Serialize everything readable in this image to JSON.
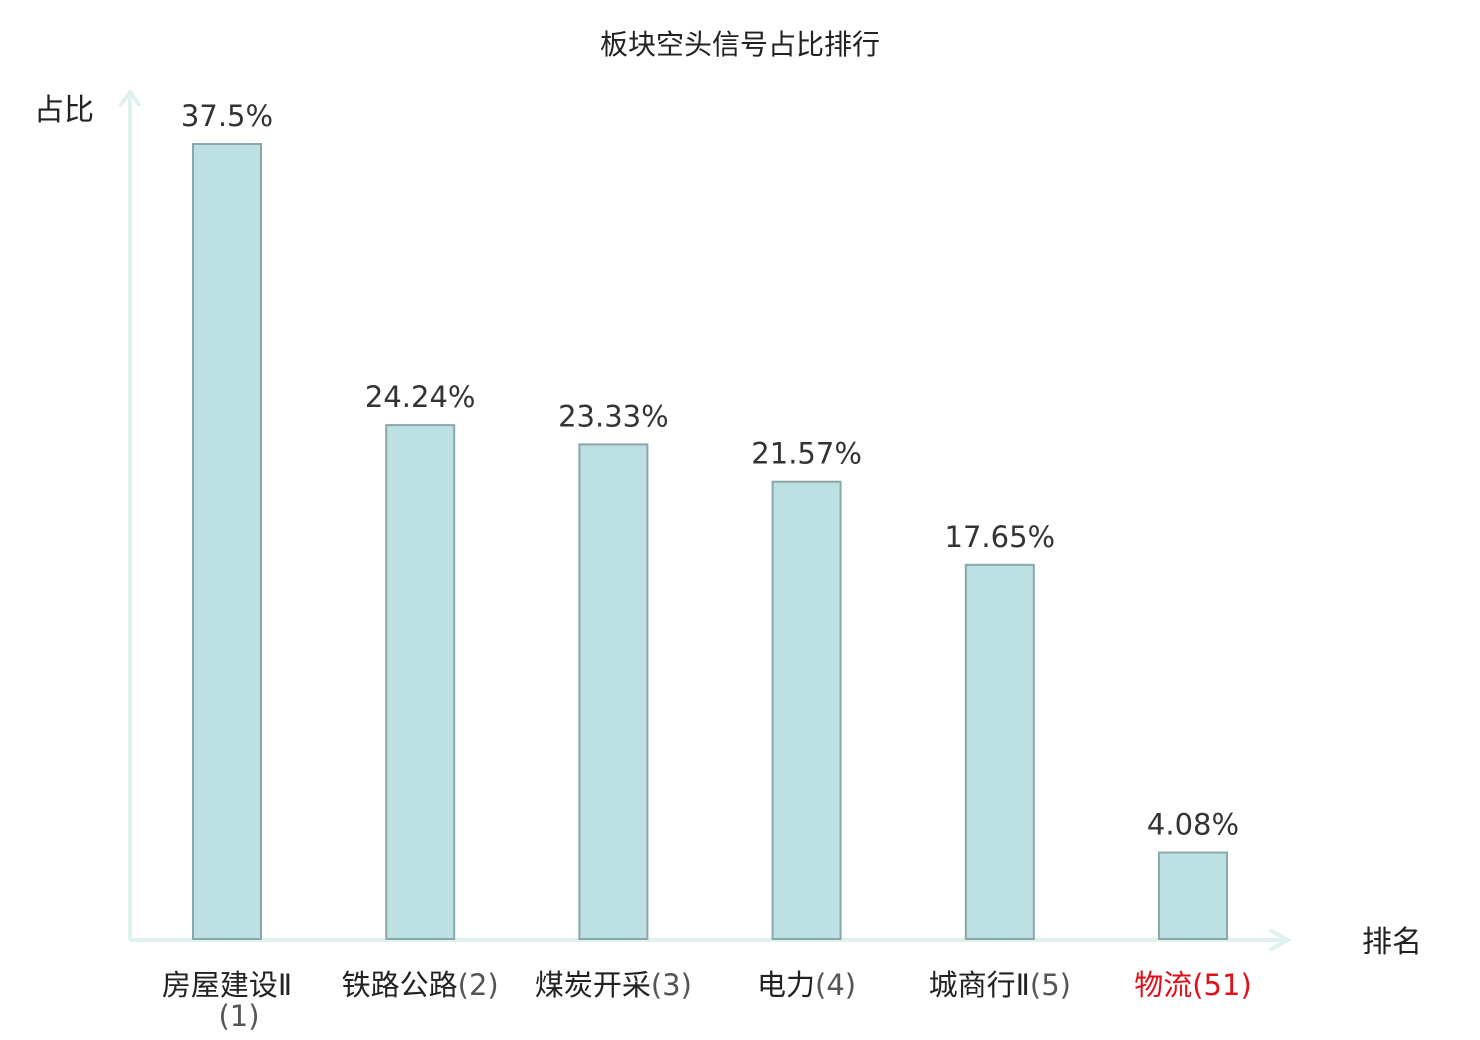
{
  "chart_data": {
    "type": "bar",
    "title": "板块空头信号占比排行",
    "ylabel": "占比",
    "xlabel": "排名",
    "ylim": [
      0,
      40
    ],
    "grid": false,
    "legend": "none",
    "categories": [
      "房屋建设Ⅱ",
      "铁路公路",
      "煤炭开采",
      "电力",
      "城商行Ⅱ",
      "物流"
    ],
    "ranks": [
      "(1)",
      "(2)",
      "(3)",
      "(4)",
      "(5)",
      "(51)"
    ],
    "values": [
      37.5,
      24.24,
      23.33,
      21.57,
      17.65,
      4.08
    ],
    "value_labels": [
      "37.5%",
      "24.24%",
      "23.33%",
      "21.57%",
      "17.65%",
      "4.08%"
    ],
    "highlight_index": 5,
    "colors": {
      "bar_fill": "#bde0e2",
      "bar_stroke": "#8aa7a9",
      "axis": "#e0f2ef",
      "highlight_text": "#e0101a",
      "text": "#222222"
    }
  }
}
